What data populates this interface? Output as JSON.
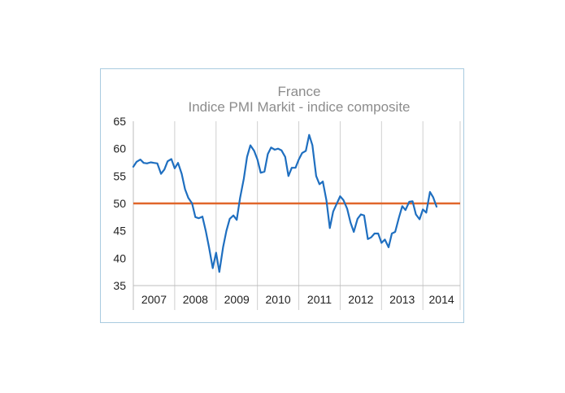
{
  "chart_data": {
    "type": "line",
    "title": "France",
    "subtitle": "Indice PMI Markit - indice composite",
    "xlabel": "",
    "ylabel": "",
    "ylim": [
      35,
      65
    ],
    "yticks": [
      "35",
      "40",
      "45",
      "50",
      "55",
      "60",
      "65"
    ],
    "xticks": [
      "2007",
      "2008",
      "2009",
      "2010",
      "2011",
      "2012",
      "2013",
      "2014"
    ],
    "xlim": [
      2007.0,
      2014.9
    ],
    "grid": "vertical year separators",
    "reference_line": {
      "value": 50,
      "color": "#e0662a"
    },
    "series": [
      {
        "color": "#1f6fc0",
        "x": [
          2007.0,
          2007.08,
          2007.17,
          2007.25,
          2007.33,
          2007.42,
          2007.5,
          2007.58,
          2007.67,
          2007.75,
          2007.83,
          2007.92,
          2008.0,
          2008.08,
          2008.17,
          2008.25,
          2008.33,
          2008.42,
          2008.5,
          2008.58,
          2008.67,
          2008.75,
          2008.83,
          2008.92,
          2009.0,
          2009.08,
          2009.17,
          2009.25,
          2009.33,
          2009.42,
          2009.5,
          2009.58,
          2009.67,
          2009.75,
          2009.83,
          2009.92,
          2010.0,
          2010.08,
          2010.17,
          2010.25,
          2010.33,
          2010.42,
          2010.5,
          2010.58,
          2010.67,
          2010.75,
          2010.83,
          2010.92,
          2011.0,
          2011.08,
          2011.17,
          2011.25,
          2011.33,
          2011.42,
          2011.5,
          2011.58,
          2011.67,
          2011.75,
          2011.83,
          2011.92,
          2012.0,
          2012.08,
          2012.17,
          2012.25,
          2012.33,
          2012.42,
          2012.5,
          2012.58,
          2012.67,
          2012.75,
          2012.83,
          2012.92,
          2013.0,
          2013.08,
          2013.17,
          2013.25,
          2013.33,
          2013.42,
          2013.5,
          2013.58,
          2013.67,
          2013.75,
          2013.83,
          2013.92,
          2014.0,
          2014.08,
          2014.17,
          2014.25,
          2014.33
        ],
        "y": [
          56.7,
          57.6,
          58.0,
          57.4,
          57.3,
          57.5,
          57.4,
          57.3,
          55.4,
          56.2,
          57.7,
          58.1,
          56.4,
          57.4,
          55.4,
          52.6,
          51.0,
          50.0,
          47.5,
          47.3,
          47.6,
          45.0,
          42.0,
          38.2,
          41.0,
          37.5,
          42.0,
          45.0,
          47.2,
          47.8,
          47.0,
          51.0,
          54.5,
          58.5,
          60.6,
          59.6,
          58.0,
          55.6,
          55.8,
          59.0,
          60.2,
          59.8,
          60.0,
          59.7,
          58.5,
          55.0,
          56.5,
          56.5,
          58.0,
          59.2,
          59.6,
          62.5,
          60.6,
          55.0,
          53.5,
          54.0,
          50.5,
          45.5,
          48.5,
          50.0,
          51.3,
          50.6,
          49.0,
          46.5,
          44.8,
          47.2,
          48.0,
          47.8,
          43.5,
          43.8,
          44.5,
          44.5,
          42.8,
          43.4,
          42.0,
          44.5,
          44.8,
          47.4,
          49.5,
          48.8,
          50.3,
          50.4,
          48.0,
          47.1,
          48.9,
          48.3,
          52.1,
          51.1,
          49.4
        ]
      }
    ]
  }
}
